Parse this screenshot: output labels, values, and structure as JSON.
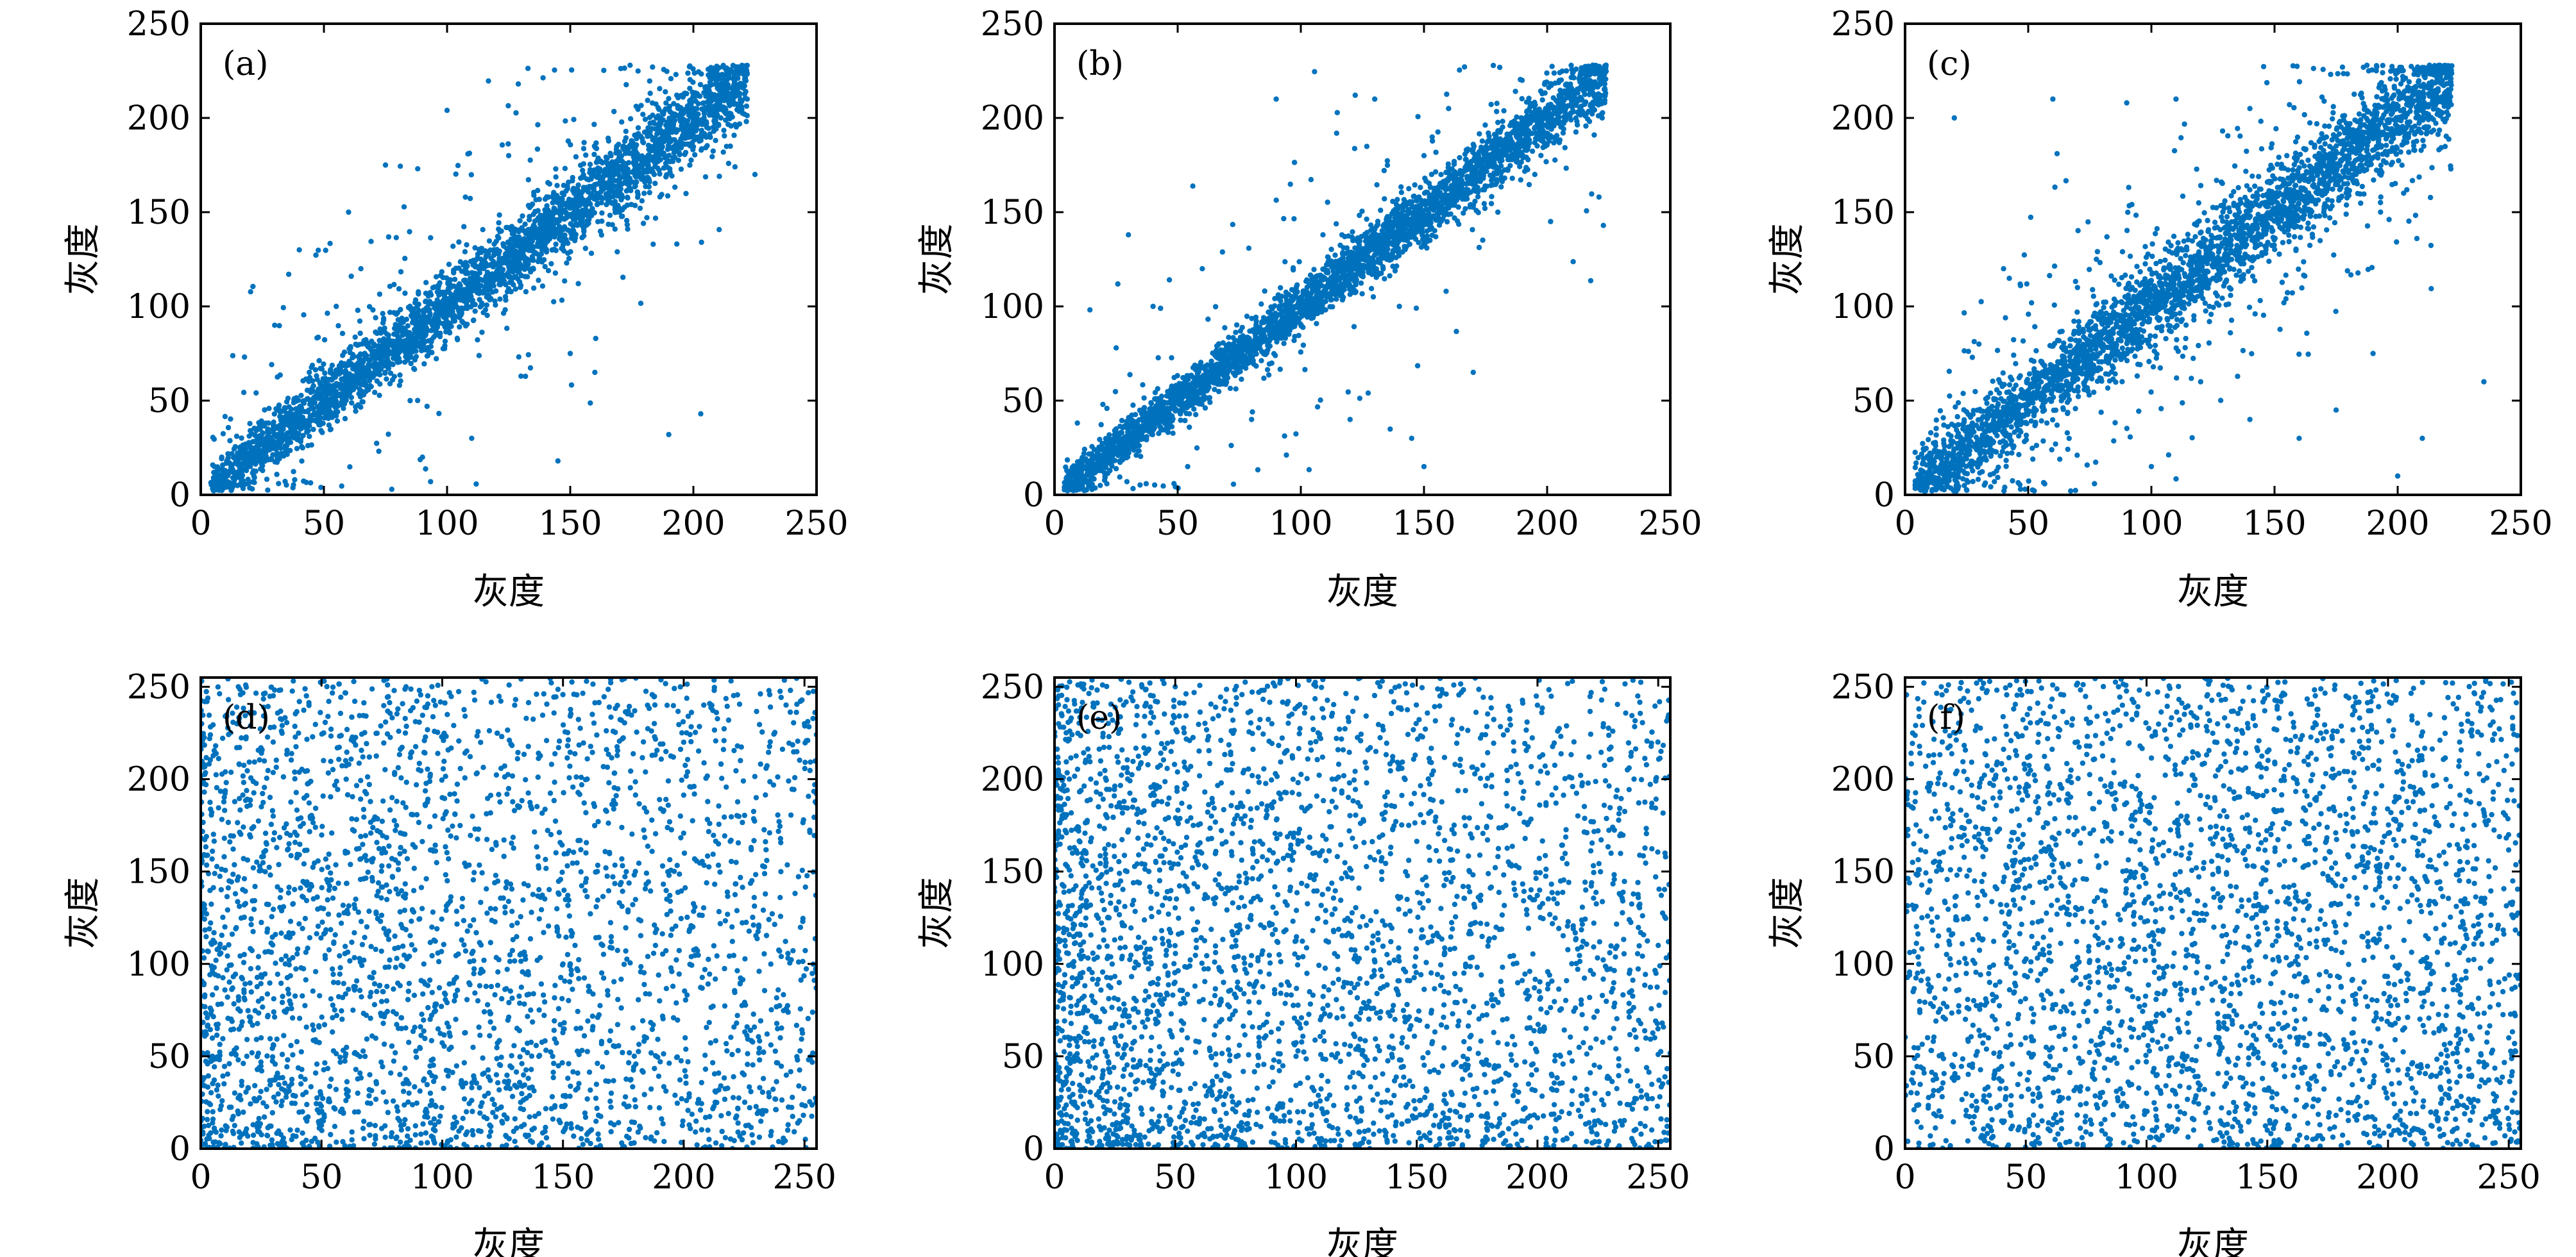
{
  "chart_data": [
    {
      "id": "a",
      "type": "scatter",
      "panel_label": "(a)",
      "xlabel": "灰度",
      "ylabel": "灰度",
      "xlim": [
        0,
        250
      ],
      "ylim": [
        0,
        250
      ],
      "xticks": [
        0,
        50,
        100,
        150,
        200,
        250
      ],
      "yticks": [
        0,
        50,
        100,
        150,
        200,
        250
      ],
      "color": "#0072BD",
      "trend": "strong positive correlation along y = x, approx 3500 points, x range 5-225",
      "points": [
        [
          10,
          8
        ],
        [
          15,
          12
        ],
        [
          20,
          18
        ],
        [
          30,
          28
        ],
        [
          40,
          37
        ],
        [
          50,
          48
        ],
        [
          60,
          58
        ],
        [
          70,
          69
        ],
        [
          80,
          78
        ],
        [
          90,
          88
        ],
        [
          100,
          99
        ],
        [
          110,
          108
        ],
        [
          120,
          118
        ],
        [
          130,
          129
        ],
        [
          140,
          138
        ],
        [
          150,
          148
        ],
        [
          160,
          158
        ],
        [
          170,
          169
        ],
        [
          180,
          178
        ],
        [
          190,
          188
        ],
        [
          200,
          199
        ],
        [
          210,
          208
        ],
        [
          220,
          218
        ],
        [
          55,
          100
        ],
        [
          65,
          120
        ],
        [
          75,
          175
        ],
        [
          85,
          50
        ],
        [
          100,
          204
        ],
        [
          130,
          63
        ],
        [
          145,
          18
        ],
        [
          150,
          75
        ],
        [
          160,
          65
        ],
        [
          190,
          32
        ],
        [
          203,
          43
        ],
        [
          215,
          185
        ],
        [
          225,
          170
        ],
        [
          40,
          130
        ],
        [
          30,
          90
        ],
        [
          90,
          20
        ],
        [
          110,
          30
        ],
        [
          125,
          180
        ],
        [
          170,
          150
        ],
        [
          180,
          160
        ],
        [
          60,
          150
        ]
      ]
    },
    {
      "id": "b",
      "type": "scatter",
      "panel_label": "(b)",
      "xlabel": "灰度",
      "ylabel": "灰度",
      "xlim": [
        0,
        250
      ],
      "ylim": [
        0,
        250
      ],
      "xticks": [
        0,
        50,
        100,
        150,
        200,
        250
      ],
      "yticks": [
        0,
        50,
        100,
        150,
        200,
        250
      ],
      "color": "#0072BD",
      "trend": "strong positive correlation along y = x, approx 3500 points, x range 5-225",
      "points": [
        [
          10,
          8
        ],
        [
          20,
          19
        ],
        [
          35,
          33
        ],
        [
          45,
          44
        ],
        [
          55,
          54
        ],
        [
          65,
          64
        ],
        [
          75,
          74
        ],
        [
          85,
          85
        ],
        [
          95,
          94
        ],
        [
          105,
          104
        ],
        [
          115,
          114
        ],
        [
          125,
          125
        ],
        [
          135,
          134
        ],
        [
          145,
          144
        ],
        [
          155,
          154
        ],
        [
          165,
          165
        ],
        [
          175,
          174
        ],
        [
          185,
          184
        ],
        [
          195,
          195
        ],
        [
          205,
          204
        ],
        [
          215,
          214
        ],
        [
          222,
          222
        ],
        [
          30,
          138
        ],
        [
          90,
          210
        ],
        [
          130,
          210
        ],
        [
          160,
          205
        ],
        [
          150,
          180
        ],
        [
          140,
          100
        ],
        [
          145,
          30
        ],
        [
          170,
          65
        ],
        [
          150,
          15
        ],
        [
          120,
          40
        ],
        [
          80,
          40
        ],
        [
          60,
          120
        ],
        [
          40,
          100
        ],
        [
          180,
          150
        ],
        [
          195,
          170
        ]
      ]
    },
    {
      "id": "c",
      "type": "scatter",
      "panel_label": "(c)",
      "xlabel": "灰度",
      "ylabel": "灰度",
      "xlim": [
        0,
        250
      ],
      "ylim": [
        0,
        250
      ],
      "xticks": [
        0,
        50,
        100,
        150,
        200,
        250
      ],
      "yticks": [
        0,
        50,
        100,
        150,
        200,
        250
      ],
      "color": "#0072BD",
      "trend": "positive correlation along y = x with wider scatter, approx 3500 points, x range 5-235",
      "points": [
        [
          10,
          9
        ],
        [
          20,
          18
        ],
        [
          30,
          29
        ],
        [
          40,
          39
        ],
        [
          50,
          48
        ],
        [
          60,
          59
        ],
        [
          70,
          69
        ],
        [
          80,
          79
        ],
        [
          90,
          89
        ],
        [
          100,
          98
        ],
        [
          110,
          109
        ],
        [
          120,
          119
        ],
        [
          130,
          128
        ],
        [
          140,
          139
        ],
        [
          150,
          149
        ],
        [
          160,
          159
        ],
        [
          170,
          168
        ],
        [
          180,
          179
        ],
        [
          190,
          189
        ],
        [
          200,
          199
        ],
        [
          210,
          208
        ],
        [
          218,
          218
        ],
        [
          20,
          200
        ],
        [
          60,
          210
        ],
        [
          90,
          208
        ],
        [
          110,
          210
        ],
        [
          140,
          205
        ],
        [
          155,
          180
        ],
        [
          170,
          150
        ],
        [
          180,
          160
        ],
        [
          235,
          60
        ],
        [
          210,
          30
        ],
        [
          200,
          10
        ],
        [
          175,
          45
        ],
        [
          190,
          75
        ],
        [
          160,
          30
        ],
        [
          140,
          40
        ],
        [
          100,
          15
        ],
        [
          70,
          110
        ],
        [
          40,
          120
        ],
        [
          30,
          80
        ],
        [
          120,
          60
        ]
      ]
    },
    {
      "id": "d",
      "type": "scatter",
      "panel_label": "(d)",
      "xlabel": "灰度",
      "ylabel": "灰度",
      "xlim": [
        0,
        255
      ],
      "ylim": [
        0,
        255
      ],
      "xticks": [
        0,
        50,
        100,
        150,
        200,
        250
      ],
      "yticks": [
        0,
        50,
        100,
        150,
        200,
        250
      ],
      "color": "#0072BD",
      "trend": "no correlation, points spread uniformly over 0-255, approx 3000 points, denser near low x",
      "points": [
        [
          5,
          20
        ],
        [
          10,
          120
        ],
        [
          15,
          230
        ],
        [
          25,
          60
        ],
        [
          30,
          180
        ],
        [
          40,
          10
        ],
        [
          45,
          140
        ],
        [
          55,
          90
        ],
        [
          60,
          210
        ],
        [
          70,
          40
        ],
        [
          75,
          160
        ],
        [
          85,
          250
        ],
        [
          95,
          70
        ],
        [
          100,
          190
        ],
        [
          110,
          20
        ],
        [
          120,
          130
        ],
        [
          130,
          240
        ],
        [
          140,
          50
        ],
        [
          150,
          100
        ],
        [
          160,
          200
        ],
        [
          170,
          30
        ],
        [
          180,
          150
        ],
        [
          190,
          80
        ],
        [
          200,
          220
        ],
        [
          210,
          10
        ],
        [
          220,
          120
        ],
        [
          230,
          190
        ],
        [
          240,
          60
        ],
        [
          250,
          230
        ],
        [
          35,
          100
        ],
        [
          65,
          30
        ],
        [
          105,
          80
        ],
        [
          145,
          170
        ],
        [
          185,
          240
        ],
        [
          225,
          40
        ]
      ]
    },
    {
      "id": "e",
      "type": "scatter",
      "panel_label": "(e)",
      "xlabel": "灰度",
      "ylabel": "灰度",
      "xlim": [
        0,
        255
      ],
      "ylim": [
        0,
        255
      ],
      "xticks": [
        0,
        50,
        100,
        150,
        200,
        250
      ],
      "yticks": [
        0,
        50,
        100,
        150,
        200,
        250
      ],
      "color": "#0072BD",
      "trend": "no correlation, points spread over 0-255, denser at low gray values, approx 3000 points",
      "points": [
        [
          5,
          10
        ],
        [
          10,
          80
        ],
        [
          15,
          200
        ],
        [
          20,
          40
        ],
        [
          30,
          150
        ],
        [
          35,
          5
        ],
        [
          40,
          100
        ],
        [
          50,
          250
        ],
        [
          55,
          60
        ],
        [
          65,
          180
        ],
        [
          75,
          20
        ],
        [
          80,
          120
        ],
        [
          90,
          230
        ],
        [
          100,
          50
        ],
        [
          110,
          160
        ],
        [
          120,
          90
        ],
        [
          130,
          10
        ],
        [
          140,
          210
        ],
        [
          150,
          70
        ],
        [
          160,
          130
        ],
        [
          170,
          30
        ],
        [
          180,
          180
        ],
        [
          190,
          100
        ],
        [
          200,
          240
        ],
        [
          210,
          20
        ],
        [
          220,
          140
        ],
        [
          230,
          60
        ],
        [
          240,
          200
        ],
        [
          250,
          110
        ],
        [
          25,
          60
        ],
        [
          45,
          30
        ],
        [
          70,
          90
        ],
        [
          95,
          15
        ],
        [
          115,
          200
        ]
      ]
    },
    {
      "id": "f",
      "type": "scatter",
      "panel_label": "(f)",
      "xlabel": "灰度",
      "ylabel": "灰度",
      "xlim": [
        0,
        255
      ],
      "ylim": [
        0,
        255
      ],
      "xticks": [
        0,
        50,
        100,
        150,
        200,
        250
      ],
      "yticks": [
        0,
        50,
        100,
        150,
        200,
        250
      ],
      "color": "#0072BD",
      "trend": "no correlation, points spread uniformly over 0-255, approx 3000 points",
      "points": [
        [
          5,
          30
        ],
        [
          10,
          140
        ],
        [
          15,
          250
        ],
        [
          25,
          70
        ],
        [
          30,
          190
        ],
        [
          40,
          15
        ],
        [
          45,
          110
        ],
        [
          55,
          220
        ],
        [
          60,
          50
        ],
        [
          70,
          170
        ],
        [
          80,
          90
        ],
        [
          90,
          240
        ],
        [
          100,
          30
        ],
        [
          110,
          130
        ],
        [
          120,
          200
        ],
        [
          130,
          60
        ],
        [
          140,
          160
        ],
        [
          150,
          10
        ],
        [
          160,
          100
        ],
        [
          170,
          230
        ],
        [
          180,
          40
        ],
        [
          190,
          150
        ],
        [
          200,
          80
        ],
        [
          210,
          210
        ],
        [
          220,
          20
        ],
        [
          230,
          120
        ],
        [
          240,
          180
        ],
        [
          250,
          60
        ],
        [
          35,
          90
        ],
        [
          85,
          5
        ],
        [
          125,
          245
        ],
        [
          165,
          60
        ],
        [
          205,
          130
        ],
        [
          245,
          20
        ]
      ]
    }
  ]
}
